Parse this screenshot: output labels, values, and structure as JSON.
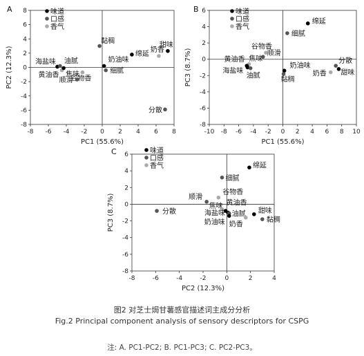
{
  "caption_cn": "图2 对芝士焗甘薯感官描述词主成分分析",
  "caption_en": "Fig.2 Principal component analysis of sensory descriptors for CSPG",
  "note": "注: A. PC1-PC2; B. PC1-PC3; C. PC2-PC3。",
  "legend": [
    {
      "label": "味道",
      "color": "#000000"
    },
    {
      "label": "口感",
      "color": "#555555"
    },
    {
      "label": "香气",
      "color": "#aaaaaa"
    }
  ],
  "chart_data": [
    {
      "panel": "A",
      "type": "scatter",
      "xlabel": "PC1 (55.6%)",
      "ylabel": "PC2 (12.3%)",
      "xlim": [
        -8,
        8
      ],
      "ylim": [
        -8,
        8
      ],
      "xticks": [
        "-8",
        "-6",
        "-4",
        "-2",
        "0",
        "2",
        "4",
        "6",
        "8"
      ],
      "yticks": [
        "-8",
        "-6",
        "-4",
        "-2",
        "0",
        "2",
        "4",
        "6",
        "8"
      ],
      "points": [
        {
          "label": "黏稠",
          "x": -0.3,
          "y": 3.0,
          "g": 1
        },
        {
          "label": "绵延",
          "x": 3.3,
          "y": 1.8,
          "g": 0
        },
        {
          "label": "甜味",
          "x": 7.3,
          "y": 2.3,
          "g": 0
        },
        {
          "label": "奶香",
          "x": 6.3,
          "y": 1.6,
          "g": 2
        },
        {
          "label": "海盐味",
          "x": -5.0,
          "y": 0.1,
          "g": 0
        },
        {
          "label": "油腻",
          "x": -4.7,
          "y": 0.2,
          "g": 1
        },
        {
          "label": "黄油香",
          "x": -4.5,
          "y": -0.4,
          "g": 2
        },
        {
          "label": "焦味",
          "x": -4.3,
          "y": -0.1,
          "g": 0
        },
        {
          "label": "谷物香",
          "x": -2.2,
          "y": -0.7,
          "g": 2
        },
        {
          "label": "顺滑",
          "x": -2.8,
          "y": -1.7,
          "g": 1
        },
        {
          "label": "奶油味",
          "x": 0.2,
          "y": 0.2,
          "g": 0
        },
        {
          "label": "细腻",
          "x": 0.4,
          "y": -0.4,
          "g": 1
        },
        {
          "label": "分散",
          "x": 7.0,
          "y": -5.9,
          "g": 1
        }
      ]
    },
    {
      "panel": "B",
      "type": "scatter",
      "xlabel": "PC1 (55.6%)",
      "ylabel": "PC3 (8.7%)",
      "xlim": [
        -10,
        10
      ],
      "ylim": [
        -8,
        6
      ],
      "xticks": [
        "-10",
        "-8",
        "-6",
        "-4",
        "-2",
        "0",
        "2",
        "4",
        "6",
        "8",
        "10"
      ],
      "yticks": [
        "-8",
        "-6",
        "-4",
        "-2",
        "0",
        "2",
        "4",
        "6"
      ],
      "points": [
        {
          "label": "绵延",
          "x": 3.4,
          "y": 4.4,
          "g": 0
        },
        {
          "label": "细腻",
          "x": 0.6,
          "y": 3.2,
          "g": 1
        },
        {
          "label": "谷物香",
          "x": -2.3,
          "y": 0.8,
          "g": 2
        },
        {
          "label": "顺滑",
          "x": -2.7,
          "y": 0.3,
          "g": 1
        },
        {
          "label": "黄油香",
          "x": -4.6,
          "y": -0.6,
          "g": 2
        },
        {
          "label": "焦味",
          "x": -4.9,
          "y": -0.8,
          "g": 0
        },
        {
          "label": "海盐味",
          "x": -4.8,
          "y": -1.0,
          "g": 0
        },
        {
          "label": "油腻",
          "x": -4.4,
          "y": -1.1,
          "g": 1
        },
        {
          "label": "奶油味",
          "x": 0.2,
          "y": -1.4,
          "g": 0
        },
        {
          "label": "黏稠",
          "x": 0.1,
          "y": -1.8,
          "g": 1
        },
        {
          "label": "分散",
          "x": 7.2,
          "y": -0.8,
          "g": 1
        },
        {
          "label": "甜味",
          "x": 7.6,
          "y": -1.2,
          "g": 0
        },
        {
          "label": "奶香",
          "x": 6.5,
          "y": -1.6,
          "g": 2
        }
      ]
    },
    {
      "panel": "C",
      "type": "scatter",
      "xlabel": "PC2 (12.3%)",
      "ylabel": "PC3 (8.7%)",
      "xlim": [
        -8,
        4
      ],
      "ylim": [
        -8,
        6
      ],
      "xticks": [
        "-8",
        "-6",
        "-4",
        "-2",
        "0",
        "2",
        "4"
      ],
      "yticks": [
        "-8",
        "-6",
        "-4",
        "-2",
        "0",
        "2",
        "4",
        "6"
      ],
      "points": [
        {
          "label": "绵延",
          "x": 1.9,
          "y": 4.4,
          "g": 0
        },
        {
          "label": "细腻",
          "x": -0.4,
          "y": 3.2,
          "g": 1
        },
        {
          "label": "顺滑",
          "x": -1.7,
          "y": 0.3,
          "g": 1
        },
        {
          "label": "谷物香",
          "x": -0.7,
          "y": 0.8,
          "g": 2
        },
        {
          "label": "焦味",
          "x": -0.1,
          "y": -0.8,
          "g": 0
        },
        {
          "label": "黄油香",
          "x": -0.4,
          "y": -0.6,
          "g": 2
        },
        {
          "label": "海盐味",
          "x": 0.1,
          "y": -1.0,
          "g": 0
        },
        {
          "label": "油腻",
          "x": 0.2,
          "y": -1.1,
          "g": 1
        },
        {
          "label": "甜味",
          "x": 2.3,
          "y": -1.2,
          "g": 0
        },
        {
          "label": "奶油味",
          "x": 0.2,
          "y": -1.4,
          "g": 0
        },
        {
          "label": "黏稠",
          "x": 3.0,
          "y": -1.8,
          "g": 1
        },
        {
          "label": "奶香",
          "x": 1.6,
          "y": -1.6,
          "g": 2
        },
        {
          "label": "分散",
          "x": -5.9,
          "y": -0.8,
          "g": 1
        }
      ]
    }
  ]
}
